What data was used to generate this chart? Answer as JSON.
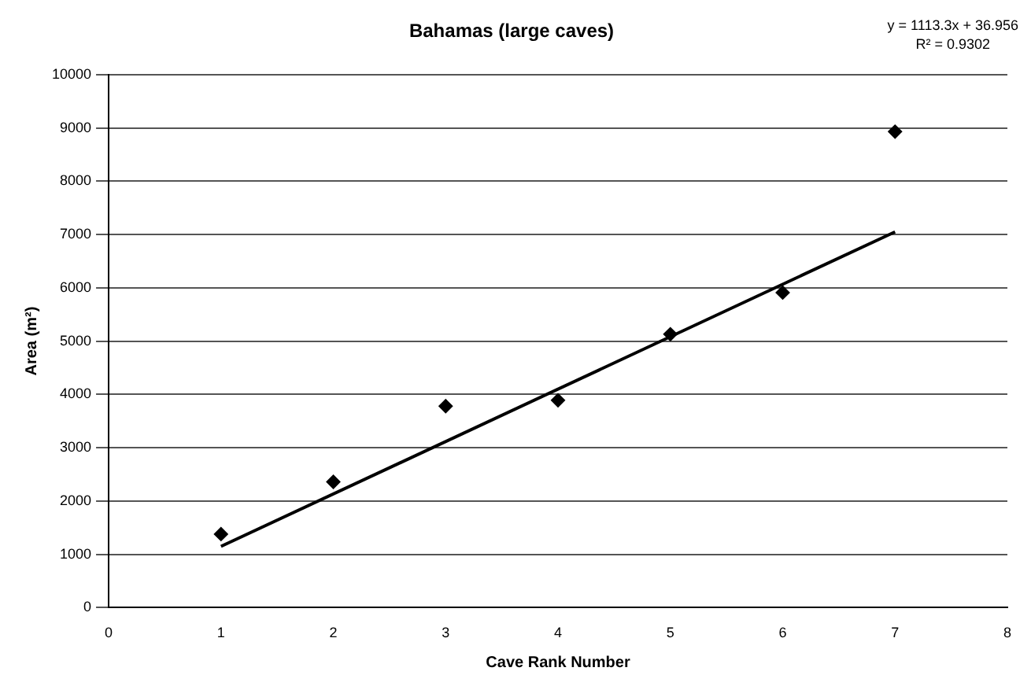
{
  "chart_data": {
    "type": "scatter",
    "title": "Bahamas (large caves)",
    "xlabel": "Cave Rank Number",
    "ylabel": "Area (m²)",
    "x": [
      1,
      2,
      3,
      4,
      5,
      6,
      7
    ],
    "series": [
      {
        "color": "#000000",
        "values": [
          1380,
          2360,
          3780,
          3890,
          5130,
          5910,
          8930
        ]
      },
      {
        "type": "line",
        "color": "#000000",
        "marker": "none",
        "x": [
          1,
          7
        ],
        "values": [
          1150,
          7050
        ]
      }
    ],
    "xlim": [
      0,
      8
    ],
    "xticks": [
      0,
      1,
      2,
      3,
      4,
      5,
      6,
      7,
      8
    ],
    "ylim": [
      0,
      10000
    ],
    "yticks": [
      0,
      1000,
      2000,
      3000,
      4000,
      5000,
      6000,
      7000,
      8000,
      9000,
      10000
    ],
    "grid": "y",
    "legend": false,
    "marker": "diamond",
    "annotations": [
      "y = 1113.3x + 36.956",
      "R² = 0.9302"
    ]
  }
}
